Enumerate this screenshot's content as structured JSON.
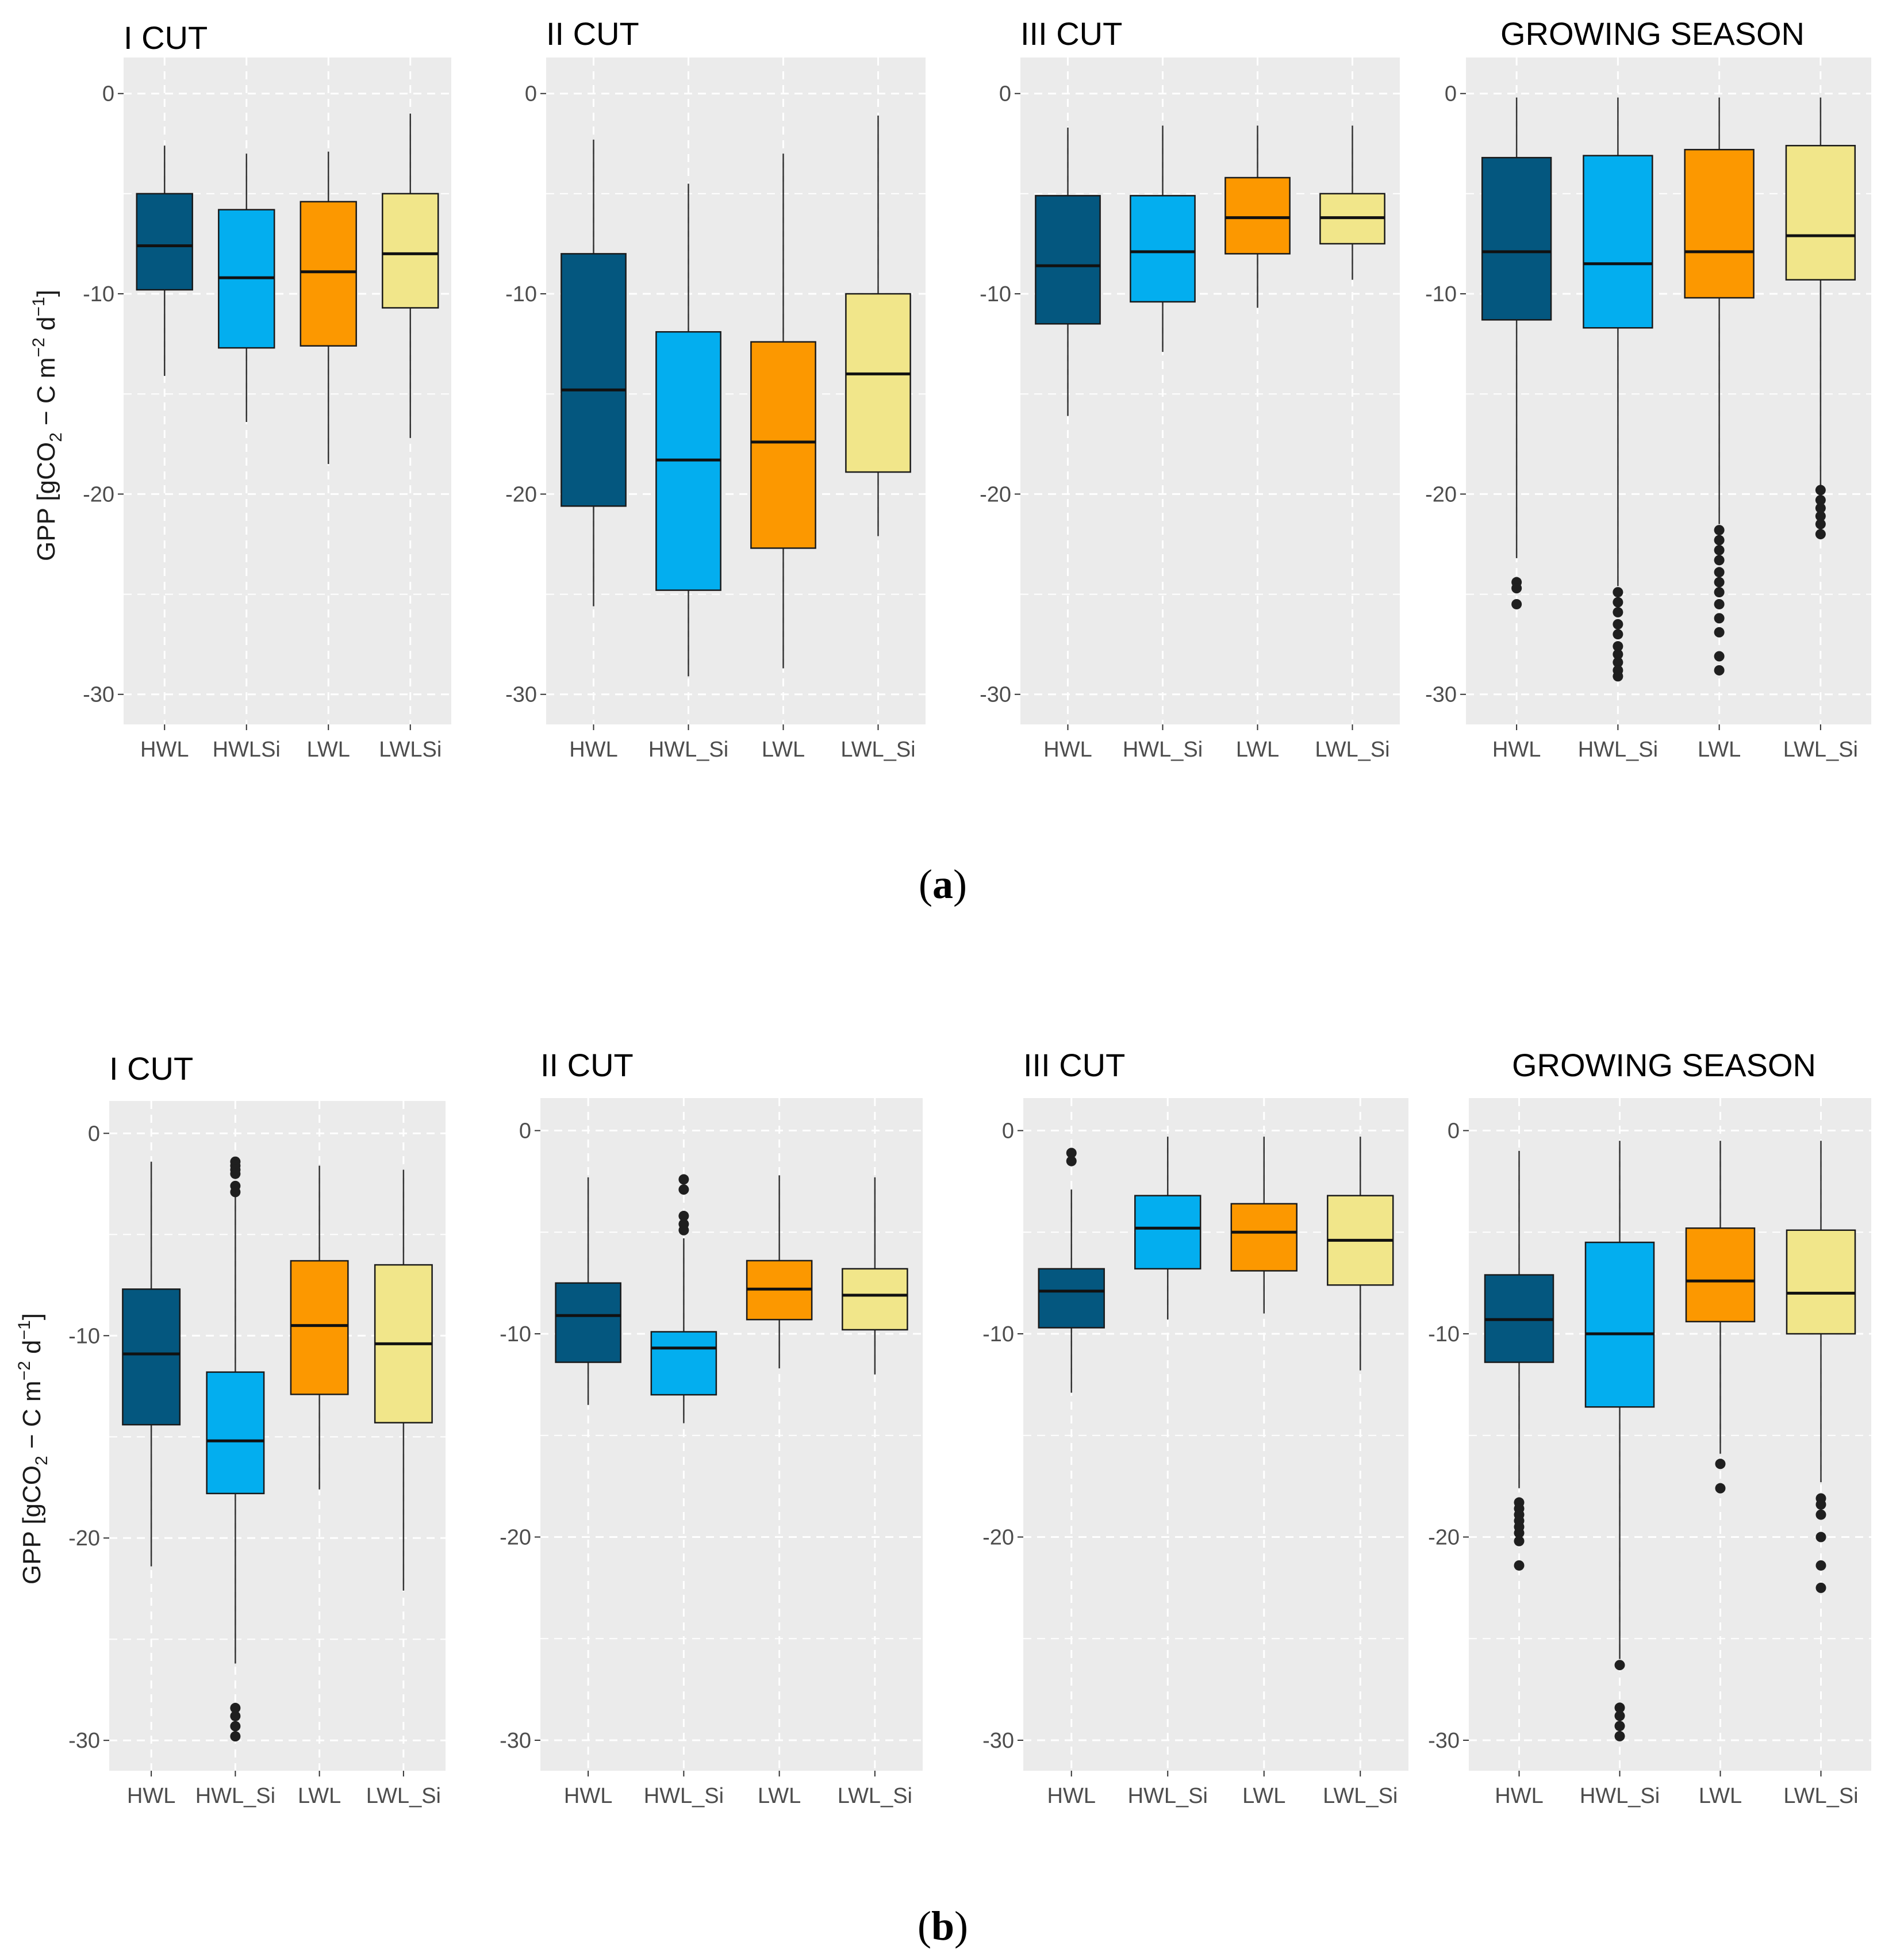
{
  "figure": {
    "y_axis_label": {
      "prefix": "GPP [gCO",
      "sub": "2",
      "mid": " − C m",
      "sup1": "−2",
      "mid2": " d",
      "sup2": "−1",
      "suffix": "]"
    },
    "caption_a": {
      "open": "(",
      "letter": "a",
      "close": ")"
    },
    "caption_b": {
      "open": "(",
      "letter": "b",
      "close": ")"
    }
  },
  "colors": {
    "HWL": "#04577f",
    "HWL_Si": "#03aeef",
    "LWL": "#fc9800",
    "LWL_Si": "#f1e68a",
    "panel_bg": "#ebebeb",
    "grid": "#ffffff",
    "outlier": "#1f1f1f"
  },
  "chart_data": [
    {
      "row": "a",
      "title": "I CUT",
      "type": "box",
      "ylim": [
        -31.5,
        1.8
      ],
      "yticks": [
        0,
        -10,
        -20,
        -30
      ],
      "categories": [
        "HWL",
        "HWLSi",
        "LWL",
        "LWLSi"
      ],
      "colorKeys": [
        "HWL",
        "HWL_Si",
        "LWL",
        "LWL_Si"
      ],
      "boxes": [
        {
          "min": -14.1,
          "q1": -9.8,
          "median": -7.6,
          "q3": -5.0,
          "max": -2.6,
          "outliers": []
        },
        {
          "min": -16.4,
          "q1": -12.7,
          "median": -9.2,
          "q3": -5.8,
          "max": -3.0,
          "outliers": []
        },
        {
          "min": -18.5,
          "q1": -12.6,
          "median": -8.9,
          "q3": -5.4,
          "max": -2.9,
          "outliers": []
        },
        {
          "min": -17.2,
          "q1": -10.7,
          "median": -8.0,
          "q3": -5.0,
          "max": -1.0,
          "outliers": []
        }
      ]
    },
    {
      "row": "a",
      "title": "II CUT",
      "type": "box",
      "ylim": [
        -31.5,
        1.8
      ],
      "yticks": [
        0,
        -10,
        -20,
        -30
      ],
      "categories": [
        "HWL",
        "HWL_Si",
        "LWL",
        "LWL_Si"
      ],
      "colorKeys": [
        "HWL",
        "HWL_Si",
        "LWL",
        "LWL_Si"
      ],
      "boxes": [
        {
          "min": -25.6,
          "q1": -20.6,
          "median": -14.8,
          "q3": -8.0,
          "max": -2.3,
          "outliers": []
        },
        {
          "min": -29.1,
          "q1": -24.8,
          "median": -18.3,
          "q3": -11.9,
          "max": -4.5,
          "outliers": []
        },
        {
          "min": -28.7,
          "q1": -22.7,
          "median": -17.4,
          "q3": -12.4,
          "max": -3.0,
          "outliers": []
        },
        {
          "min": -22.1,
          "q1": -18.9,
          "median": -14.0,
          "q3": -10.0,
          "max": -1.1,
          "outliers": []
        }
      ]
    },
    {
      "row": "a",
      "title": "III CUT",
      "type": "box",
      "ylim": [
        -31.5,
        1.8
      ],
      "yticks": [
        0,
        -10,
        -20,
        -30
      ],
      "categories": [
        "HWL",
        "HWL_Si",
        "LWL",
        "LWL_Si"
      ],
      "colorKeys": [
        "HWL",
        "HWL_Si",
        "LWL",
        "LWL_Si"
      ],
      "boxes": [
        {
          "min": -16.1,
          "q1": -11.5,
          "median": -8.6,
          "q3": -5.1,
          "max": -1.7,
          "outliers": []
        },
        {
          "min": -12.9,
          "q1": -10.4,
          "median": -7.9,
          "q3": -5.1,
          "max": -1.6,
          "outliers": []
        },
        {
          "min": -10.7,
          "q1": -8.0,
          "median": -6.2,
          "q3": -4.2,
          "max": -1.6,
          "outliers": []
        },
        {
          "min": -9.3,
          "q1": -7.5,
          "median": -6.2,
          "q3": -5.0,
          "max": -1.6,
          "outliers": []
        }
      ]
    },
    {
      "row": "a",
      "title": "GROWING SEASON",
      "type": "box",
      "ylim": [
        -31.5,
        1.8
      ],
      "yticks": [
        0,
        -10,
        -20,
        -30
      ],
      "categories": [
        "HWL",
        "HWL_Si",
        "LWL",
        "LWL_Si"
      ],
      "colorKeys": [
        "HWL",
        "HWL_Si",
        "LWL",
        "LWL_Si"
      ],
      "boxes": [
        {
          "min": -23.2,
          "q1": -11.3,
          "median": -7.9,
          "q3": -3.2,
          "max": -0.2,
          "outliers": [
            -24.4,
            -24.7,
            -25.5
          ]
        },
        {
          "min": -24.6,
          "q1": -11.7,
          "median": -8.5,
          "q3": -3.1,
          "max": -0.2,
          "outliers": [
            -24.9,
            -25.4,
            -25.9,
            -26.5,
            -27.0,
            -27.6,
            -28.0,
            -28.4,
            -28.8,
            -29.1
          ]
        },
        {
          "min": -21.5,
          "q1": -10.2,
          "median": -7.9,
          "q3": -2.8,
          "max": -0.2,
          "outliers": [
            -21.8,
            -22.3,
            -22.8,
            -23.3,
            -23.9,
            -24.4,
            -24.9,
            -25.5,
            -26.2,
            -26.9,
            -28.1,
            -28.8
          ]
        },
        {
          "min": -19.6,
          "q1": -9.3,
          "median": -7.1,
          "q3": -2.6,
          "max": -0.2,
          "outliers": [
            -19.8,
            -20.3,
            -20.7,
            -21.1,
            -21.5,
            -22.0
          ]
        }
      ]
    },
    {
      "row": "b",
      "title": "I CUT",
      "type": "box",
      "ylim": [
        -31.5,
        1.6
      ],
      "yticks": [
        0,
        -10,
        -20,
        -30
      ],
      "categories": [
        "HWL",
        "HWL_Si",
        "LWL",
        "LWL_Si"
      ],
      "colorKeys": [
        "HWL",
        "HWL_Si",
        "LWL",
        "LWL_Si"
      ],
      "boxes": [
        {
          "min": -21.4,
          "q1": -14.4,
          "median": -10.9,
          "q3": -7.7,
          "max": -1.4,
          "outliers": []
        },
        {
          "min": -26.2,
          "q1": -17.8,
          "median": -15.2,
          "q3": -11.8,
          "max": -3.0,
          "outliers": [
            -1.4,
            -1.6,
            -1.8,
            -2.0,
            -2.6,
            -2.9,
            -28.4,
            -28.8,
            -29.3,
            -29.8
          ]
        },
        {
          "min": -17.6,
          "q1": -12.9,
          "median": -9.5,
          "q3": -6.3,
          "max": -1.6,
          "outliers": []
        },
        {
          "min": -22.6,
          "q1": -14.3,
          "median": -10.4,
          "q3": -6.5,
          "max": -1.8,
          "outliers": []
        }
      ]
    },
    {
      "row": "b",
      "title": "II CUT",
      "type": "box",
      "ylim": [
        -31.5,
        1.6
      ],
      "yticks": [
        0,
        -10,
        -20,
        -30
      ],
      "categories": [
        "HWL",
        "HWL_Si",
        "LWL",
        "LWL_Si"
      ],
      "colorKeys": [
        "HWL",
        "HWL_Si",
        "LWL",
        "LWL_Si"
      ],
      "boxes": [
        {
          "min": -13.5,
          "q1": -11.4,
          "median": -9.1,
          "q3": -7.5,
          "max": -2.3,
          "outliers": []
        },
        {
          "min": -14.4,
          "q1": -13.0,
          "median": -10.7,
          "q3": -9.9,
          "max": -5.3,
          "outliers": [
            -2.4,
            -2.9,
            -4.2,
            -4.6,
            -4.9
          ]
        },
        {
          "min": -11.7,
          "q1": -9.3,
          "median": -7.8,
          "q3": -6.4,
          "max": -2.2,
          "outliers": []
        },
        {
          "min": -12.0,
          "q1": -9.8,
          "median": -8.1,
          "q3": -6.8,
          "max": -2.3,
          "outliers": []
        }
      ]
    },
    {
      "row": "b",
      "title": "III CUT",
      "type": "box",
      "ylim": [
        -31.5,
        1.6
      ],
      "yticks": [
        0,
        -10,
        -20,
        -30
      ],
      "categories": [
        "HWL",
        "HWL_Si",
        "LWL",
        "LWL_Si"
      ],
      "colorKeys": [
        "HWL",
        "HWL_Si",
        "LWL",
        "LWL_Si"
      ],
      "boxes": [
        {
          "min": -12.9,
          "q1": -9.7,
          "median": -7.9,
          "q3": -6.8,
          "max": -2.9,
          "outliers": [
            -1.1,
            -1.5
          ]
        },
        {
          "min": -9.3,
          "q1": -6.8,
          "median": -4.8,
          "q3": -3.2,
          "max": -0.3,
          "outliers": []
        },
        {
          "min": -9.0,
          "q1": -6.9,
          "median": -5.0,
          "q3": -3.6,
          "max": -0.3,
          "outliers": []
        },
        {
          "min": -11.8,
          "q1": -7.6,
          "median": -5.4,
          "q3": -3.2,
          "max": -0.3,
          "outliers": []
        }
      ]
    },
    {
      "row": "b",
      "title": "GROWING SEASON",
      "type": "box",
      "ylim": [
        -31.5,
        1.6
      ],
      "yticks": [
        0,
        -10,
        -20,
        -30
      ],
      "categories": [
        "HWL",
        "HWL_Si",
        "LWL",
        "LWL_Si"
      ],
      "colorKeys": [
        "HWL",
        "HWL_Si",
        "LWL",
        "LWL_Si"
      ],
      "boxes": [
        {
          "min": -17.6,
          "q1": -11.4,
          "median": -9.3,
          "q3": -7.1,
          "max": -1.0,
          "outliers": [
            -18.3,
            -18.6,
            -18.9,
            -19.2,
            -19.5,
            -19.8,
            -20.2,
            -21.4
          ]
        },
        {
          "min": -26.0,
          "q1": -13.6,
          "median": -10.0,
          "q3": -5.5,
          "max": -0.5,
          "outliers": [
            -26.3,
            -28.4,
            -28.8,
            -29.3,
            -29.8
          ]
        },
        {
          "min": -15.9,
          "q1": -9.4,
          "median": -7.4,
          "q3": -4.8,
          "max": -0.5,
          "outliers": [
            -16.4,
            -17.6
          ]
        },
        {
          "min": -17.3,
          "q1": -10.0,
          "median": -8.0,
          "q3": -4.9,
          "max": -0.5,
          "outliers": [
            -18.1,
            -18.4,
            -18.9,
            -20.0,
            -21.4,
            -22.5
          ]
        }
      ]
    }
  ]
}
